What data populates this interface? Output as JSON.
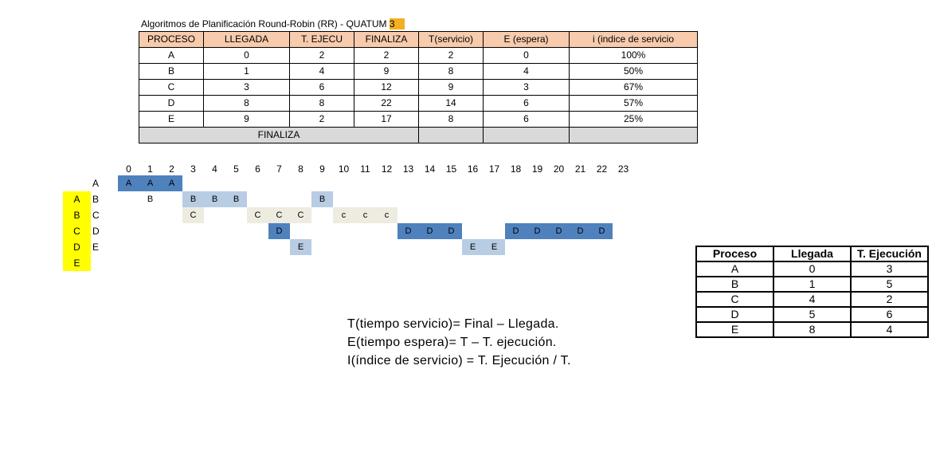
{
  "title": {
    "text": "Algoritmos de Planificación  Round-Robin (RR) - QUATUM",
    "quantum": "3"
  },
  "main_table": {
    "headers": [
      "PROCESO",
      "LLEGADA",
      "T. EJECU",
      "FINALIZA",
      "T(servicio)",
      "E (espera)",
      "i (indice de servicio"
    ],
    "rows": [
      [
        "A",
        "0",
        "2",
        "2",
        "2",
        "0",
        "100%"
      ],
      [
        "B",
        "1",
        "4",
        "9",
        "8",
        "4",
        "50%"
      ],
      [
        "C",
        "3",
        "6",
        "12",
        "9",
        "3",
        "67%"
      ],
      [
        "D",
        "8",
        "8",
        "22",
        "14",
        "6",
        "57%"
      ],
      [
        "E",
        "9",
        "2",
        "17",
        "8",
        "6",
        "25%"
      ]
    ],
    "footer_label": "FINALIZA"
  },
  "gantt": {
    "times": [
      "0",
      "1",
      "2",
      "3",
      "4",
      "5",
      "6",
      "7",
      "8",
      "9",
      "10",
      "11",
      "12",
      "13",
      "14",
      "15",
      "16",
      "17",
      "18",
      "19",
      "20",
      "21",
      "22",
      "23"
    ],
    "row_labels": [
      "A",
      "B",
      "C",
      "D",
      "E"
    ],
    "queue": [
      "A",
      "B",
      "C",
      "D",
      "E"
    ],
    "rows": [
      [
        {
          "t": 0,
          "label": "A",
          "style": "dark"
        },
        {
          "t": 1,
          "label": "A",
          "style": "dark"
        },
        {
          "t": 2,
          "label": "A",
          "style": "dark"
        }
      ],
      [
        {
          "t": 1,
          "label": "B",
          "style": "none"
        },
        {
          "t": 3,
          "label": "B",
          "style": "light"
        },
        {
          "t": 4,
          "label": "B",
          "style": "light"
        },
        {
          "t": 5,
          "label": "B",
          "style": "light"
        },
        {
          "t": 9,
          "label": "B",
          "style": "light"
        }
      ],
      [
        {
          "t": 3,
          "label": "C",
          "style": "beige"
        },
        {
          "t": 6,
          "label": "C",
          "style": "beige"
        },
        {
          "t": 7,
          "label": "C",
          "style": "beige"
        },
        {
          "t": 8,
          "label": "C",
          "style": "beige"
        },
        {
          "t": 10,
          "label": "c",
          "style": "beige"
        },
        {
          "t": 11,
          "label": "c",
          "style": "beige"
        },
        {
          "t": 12,
          "label": "c",
          "style": "beige"
        }
      ],
      [
        {
          "t": 7,
          "label": "D",
          "style": "dark"
        },
        {
          "t": 13,
          "label": "D",
          "style": "dark"
        },
        {
          "t": 14,
          "label": "D",
          "style": "dark"
        },
        {
          "t": 15,
          "label": "D",
          "style": "dark"
        },
        {
          "t": 18,
          "label": "D",
          "style": "dark"
        },
        {
          "t": 19,
          "label": "D",
          "style": "dark"
        },
        {
          "t": 20,
          "label": "D",
          "style": "dark"
        },
        {
          "t": 21,
          "label": "D",
          "style": "dark"
        },
        {
          "t": 22,
          "label": "D",
          "style": "dark"
        }
      ],
      [
        {
          "t": 8,
          "label": "E",
          "style": "light"
        },
        {
          "t": 16,
          "label": "E",
          "style": "light"
        },
        {
          "t": 17,
          "label": "E",
          "style": "light"
        }
      ]
    ],
    "colors": {
      "dark": "#4f81bd",
      "light": "#b8cce4",
      "beige": "#eeece1",
      "queue": "#ffff00"
    }
  },
  "formulas": [
    "T(tiempo servicio)= Final – Llegada.",
    "E(tiempo espera)= T – T. ejecución.",
    "I(índice de servicio) = T. Ejecución / T."
  ],
  "side_table": {
    "headers": [
      "Proceso",
      "Llegada",
      "T. Ejecución"
    ],
    "rows": [
      [
        "A",
        "0",
        "3"
      ],
      [
        "B",
        "1",
        "5"
      ],
      [
        "C",
        "4",
        "2"
      ],
      [
        "D",
        "5",
        "6"
      ],
      [
        "E",
        "8",
        "4"
      ]
    ]
  }
}
